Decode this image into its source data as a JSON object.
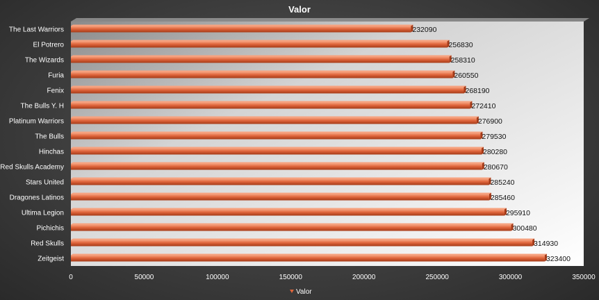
{
  "chart_data": {
    "type": "bar",
    "orientation": "horizontal",
    "title": "Valor",
    "categories": [
      "The Last Warriors",
      "El Potrero",
      "The Wizards",
      "Furia",
      "Fenix",
      "The Bulls Y. H",
      "Platinum Warriors",
      "The Bulls",
      "Hinchas",
      "Red Skulls Academy",
      "Stars United",
      "Dragones Latinos",
      "Ultima Legion",
      "Pichichis",
      "Red Skulls",
      "Zeitgeist"
    ],
    "series": [
      {
        "name": "Valor",
        "values": [
          232090,
          256830,
          258310,
          260550,
          268190,
          272410,
          276900,
          279530,
          280280,
          280670,
          285240,
          285460,
          295910,
          300480,
          314930,
          323400
        ]
      }
    ],
    "xlim": [
      0,
      350000
    ],
    "xticks": [
      0,
      50000,
      100000,
      150000,
      200000,
      250000,
      300000,
      350000
    ],
    "grid": false,
    "legend_position": "bottom",
    "colors": {
      "bar": "#e0663c",
      "bar_dark": "#a53a17",
      "bar_light": "#f6a27f"
    }
  }
}
